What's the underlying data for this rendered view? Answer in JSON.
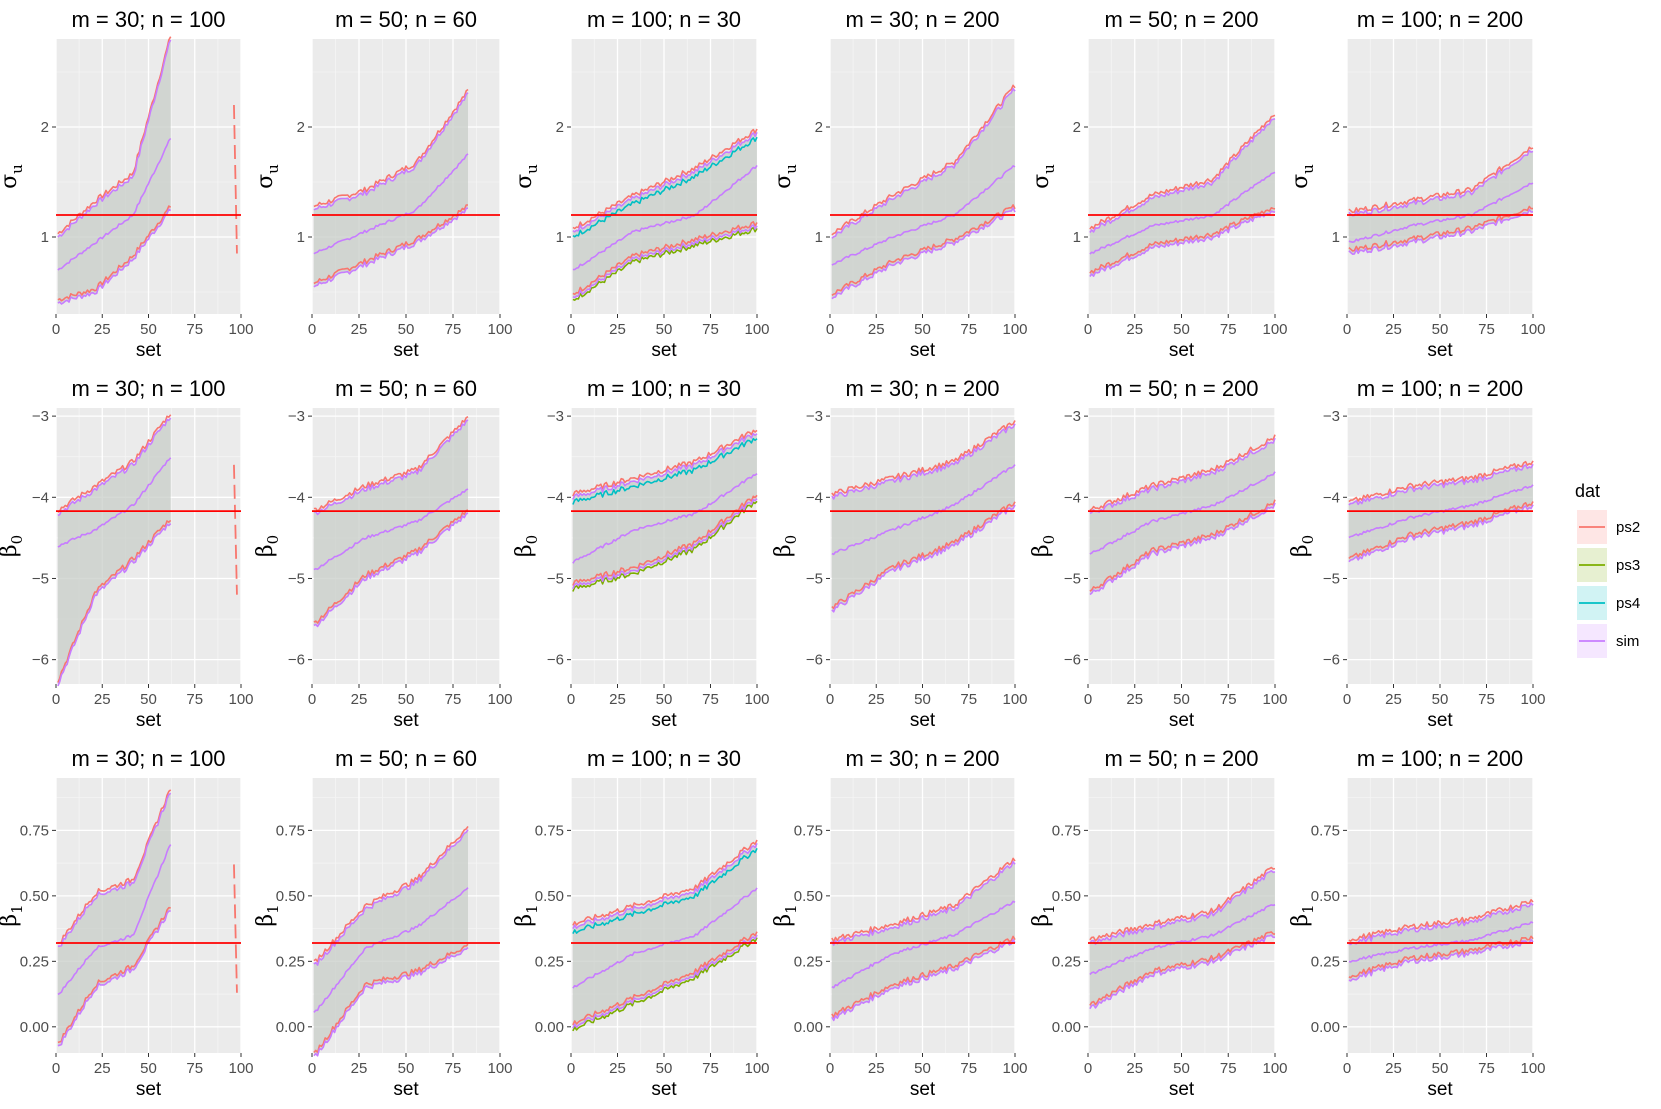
{
  "chart_data": {
    "type": "line",
    "description_x": "set",
    "legend": {
      "title": "dat",
      "position": "right",
      "entries": [
        {
          "name": "ps2",
          "color": "#F8766D"
        },
        {
          "name": "ps3",
          "color": "#7CAE00"
        },
        {
          "name": "ps4",
          "color": "#00BFC4"
        },
        {
          "name": "sim",
          "color": "#C77CFF"
        }
      ]
    },
    "reference_line_color": "#FF0000",
    "panel_titles": [
      "m = 30; n = 100",
      "m = 50; n = 60",
      "m = 100; n = 30",
      "m = 30; n = 200",
      "m = 50; n = 200",
      "m = 100; n = 200"
    ],
    "rows": [
      {
        "param": "σ",
        "param_sub": "u",
        "ylim": [
          0.3,
          2.8
        ],
        "yticks": [
          1,
          2
        ],
        "ytick_labels": [
          "1",
          "2"
        ],
        "reference": 1.2,
        "panels": [
          {
            "title": "m = 30; n = 100",
            "xlabel": "set",
            "xlim": [
              0,
              100
            ],
            "xticks": [
              0,
              25,
              50,
              75,
              100
            ],
            "n_sets": 62,
            "lower": [
              0.4,
              0.5,
              0.8,
              1.25
            ],
            "mid": [
              0.7,
              0.95,
              1.2,
              1.9
            ],
            "upper": [
              1.0,
              1.3,
              1.55,
              2.8
            ],
            "outlier": {
              "x": 97,
              "lower": 0.85,
              "mid": 1.2,
              "upper": 2.2
            }
          },
          {
            "title": "m = 50; n = 60",
            "xlabel": "set",
            "xlim": [
              0,
              100
            ],
            "xticks": [
              0,
              25,
              50,
              75,
              100
            ],
            "n_sets": 83,
            "lower": [
              0.55,
              0.75,
              0.95,
              1.25
            ],
            "mid": [
              0.85,
              1.05,
              1.25,
              1.75
            ],
            "upper": [
              1.25,
              1.4,
              1.65,
              2.3
            ]
          },
          {
            "title": "m = 100; n = 30",
            "xlabel": "set",
            "xlim": [
              0,
              100
            ],
            "xticks": [
              0,
              25,
              50,
              75,
              100
            ],
            "n_sets": 100,
            "lower": [
              0.45,
              0.8,
              0.95,
              1.1
            ],
            "mid": [
              0.7,
              1.05,
              1.2,
              1.65
            ],
            "upper": [
              1.05,
              1.35,
              1.6,
              1.95
            ]
          },
          {
            "title": "m = 30; n = 200",
            "xlabel": "set",
            "xlim": [
              0,
              100
            ],
            "xticks": [
              0,
              25,
              50,
              75,
              100
            ],
            "n_sets": 100,
            "lower": [
              0.45,
              0.75,
              0.95,
              1.25
            ],
            "mid": [
              0.75,
              1.0,
              1.2,
              1.65
            ],
            "upper": [
              1.0,
              1.35,
              1.65,
              2.35
            ]
          },
          {
            "title": "m = 50; n = 200",
            "xlabel": "set",
            "xlim": [
              0,
              100
            ],
            "xticks": [
              0,
              25,
              50,
              75,
              100
            ],
            "n_sets": 100,
            "lower": [
              0.65,
              0.9,
              1.0,
              1.25
            ],
            "mid": [
              0.85,
              1.1,
              1.2,
              1.6
            ],
            "upper": [
              1.05,
              1.35,
              1.5,
              2.1
            ]
          },
          {
            "title": "m = 100; n = 200",
            "xlabel": "set",
            "xlim": [
              0,
              100
            ],
            "xticks": [
              0,
              25,
              50,
              75,
              100
            ],
            "n_sets": 100,
            "lower": [
              0.85,
              0.95,
              1.05,
              1.25
            ],
            "mid": [
              0.95,
              1.1,
              1.2,
              1.5
            ],
            "upper": [
              1.2,
              1.3,
              1.4,
              1.8
            ]
          }
        ]
      },
      {
        "param": "β",
        "param_sub": "0",
        "ylim": [
          -6.3,
          -2.9
        ],
        "yticks": [
          -6,
          -5,
          -4,
          -3
        ],
        "ytick_labels": [
          "−6",
          "−5",
          "−4",
          "−3"
        ],
        "reference": -4.17,
        "panels": [
          {
            "title": "m = 30; n = 100",
            "xlabel": "set",
            "xlim": [
              0,
              100
            ],
            "xticks": [
              0,
              25,
              50,
              75,
              100
            ],
            "n_sets": 62,
            "lower": [
              -6.3,
              -5.2,
              -4.8,
              -4.3
            ],
            "mid": [
              -4.6,
              -4.4,
              -4.1,
              -3.5
            ],
            "upper": [
              -4.2,
              -3.9,
              -3.6,
              -3.0
            ],
            "outlier": {
              "x": 97,
              "lower": -5.2,
              "mid": -4.4,
              "upper": -3.6
            }
          },
          {
            "title": "m = 50; n = 60",
            "xlabel": "set",
            "xlim": [
              0,
              100
            ],
            "xticks": [
              0,
              25,
              50,
              75,
              100
            ],
            "n_sets": 83,
            "lower": [
              -5.6,
              -5.0,
              -4.7,
              -4.2
            ],
            "mid": [
              -4.9,
              -4.5,
              -4.3,
              -3.9
            ],
            "upper": [
              -4.2,
              -3.9,
              -3.7,
              -3.05
            ]
          },
          {
            "title": "m = 100; n = 30",
            "xlabel": "set",
            "xlim": [
              0,
              100
            ],
            "xticks": [
              0,
              25,
              50,
              75,
              100
            ],
            "n_sets": 100,
            "lower": [
              -5.1,
              -4.9,
              -4.6,
              -4.0
            ],
            "mid": [
              -4.8,
              -4.4,
              -4.2,
              -3.7
            ],
            "upper": [
              -4.0,
              -3.8,
              -3.6,
              -3.2
            ]
          },
          {
            "title": "m = 30; n = 200",
            "xlabel": "set",
            "xlim": [
              0,
              100
            ],
            "xticks": [
              0,
              25,
              50,
              75,
              100
            ],
            "n_sets": 100,
            "lower": [
              -5.4,
              -4.9,
              -4.6,
              -4.1
            ],
            "mid": [
              -4.7,
              -4.4,
              -4.1,
              -3.6
            ],
            "upper": [
              -4.0,
              -3.8,
              -3.6,
              -3.1
            ]
          },
          {
            "title": "m = 50; n = 200",
            "xlabel": "set",
            "xlim": [
              0,
              100
            ],
            "xticks": [
              0,
              25,
              50,
              75,
              100
            ],
            "n_sets": 100,
            "lower": [
              -5.2,
              -4.7,
              -4.5,
              -4.1
            ],
            "mid": [
              -4.7,
              -4.3,
              -4.1,
              -3.7
            ],
            "upper": [
              -4.2,
              -3.9,
              -3.7,
              -3.3
            ]
          },
          {
            "title": "m = 100; n = 200",
            "xlabel": "set",
            "xlim": [
              0,
              100
            ],
            "xticks": [
              0,
              25,
              50,
              75,
              100
            ],
            "n_sets": 100,
            "lower": [
              -4.8,
              -4.5,
              -4.35,
              -4.1
            ],
            "mid": [
              -4.5,
              -4.25,
              -4.1,
              -3.85
            ],
            "upper": [
              -4.1,
              -3.9,
              -3.8,
              -3.6
            ]
          }
        ]
      },
      {
        "param": "β",
        "param_sub": "1",
        "ylim": [
          -0.1,
          0.95
        ],
        "yticks": [
          0,
          0.25,
          0.5,
          0.75
        ],
        "ytick_labels": [
          "0.00",
          "0.25",
          "0.50",
          "0.75"
        ],
        "reference": 0.32,
        "panels": [
          {
            "title": "m = 30; n = 100",
            "xlabel": "set",
            "xlim": [
              0,
              100
            ],
            "xticks": [
              0,
              25,
              50,
              75,
              100
            ],
            "n_sets": 62,
            "lower": [
              -0.08,
              0.15,
              0.22,
              0.45
            ],
            "mid": [
              0.12,
              0.3,
              0.35,
              0.7
            ],
            "upper": [
              0.3,
              0.5,
              0.55,
              0.9
            ],
            "outlier": {
              "x": 97,
              "lower": 0.13,
              "mid": 0.35,
              "upper": 0.62
            }
          },
          {
            "title": "m = 50; n = 60",
            "xlabel": "set",
            "xlim": [
              0,
              100
            ],
            "xticks": [
              0,
              25,
              50,
              75,
              100
            ],
            "n_sets": 83,
            "lower": [
              -0.12,
              0.15,
              0.2,
              0.3
            ],
            "mid": [
              0.05,
              0.3,
              0.38,
              0.53
            ],
            "upper": [
              0.23,
              0.45,
              0.55,
              0.75
            ]
          },
          {
            "title": "m = 100; n = 30",
            "xlabel": "set",
            "xlim": [
              0,
              100
            ],
            "xticks": [
              0,
              25,
              50,
              75,
              100
            ],
            "n_sets": 100,
            "lower": [
              0.0,
              0.1,
              0.2,
              0.35
            ],
            "mid": [
              0.15,
              0.28,
              0.35,
              0.53
            ],
            "upper": [
              0.38,
              0.45,
              0.52,
              0.7
            ]
          },
          {
            "title": "m = 30; n = 200",
            "xlabel": "set",
            "xlim": [
              0,
              100
            ],
            "xticks": [
              0,
              25,
              50,
              75,
              100
            ],
            "n_sets": 100,
            "lower": [
              0.03,
              0.15,
              0.22,
              0.33
            ],
            "mid": [
              0.15,
              0.28,
              0.35,
              0.48
            ],
            "upper": [
              0.32,
              0.38,
              0.45,
              0.63
            ]
          },
          {
            "title": "m = 50; n = 200",
            "xlabel": "set",
            "xlim": [
              0,
              100
            ],
            "xticks": [
              0,
              25,
              50,
              75,
              100
            ],
            "n_sets": 100,
            "lower": [
              0.07,
              0.2,
              0.25,
              0.35
            ],
            "mid": [
              0.2,
              0.3,
              0.35,
              0.47
            ],
            "upper": [
              0.32,
              0.38,
              0.43,
              0.6
            ]
          },
          {
            "title": "m = 100; n = 200",
            "xlabel": "set",
            "xlim": [
              0,
              100
            ],
            "xticks": [
              0,
              25,
              50,
              75,
              100
            ],
            "n_sets": 100,
            "lower": [
              0.18,
              0.25,
              0.28,
              0.33
            ],
            "mid": [
              0.25,
              0.3,
              0.33,
              0.4
            ],
            "upper": [
              0.32,
              0.37,
              0.4,
              0.47
            ]
          }
        ]
      }
    ]
  }
}
